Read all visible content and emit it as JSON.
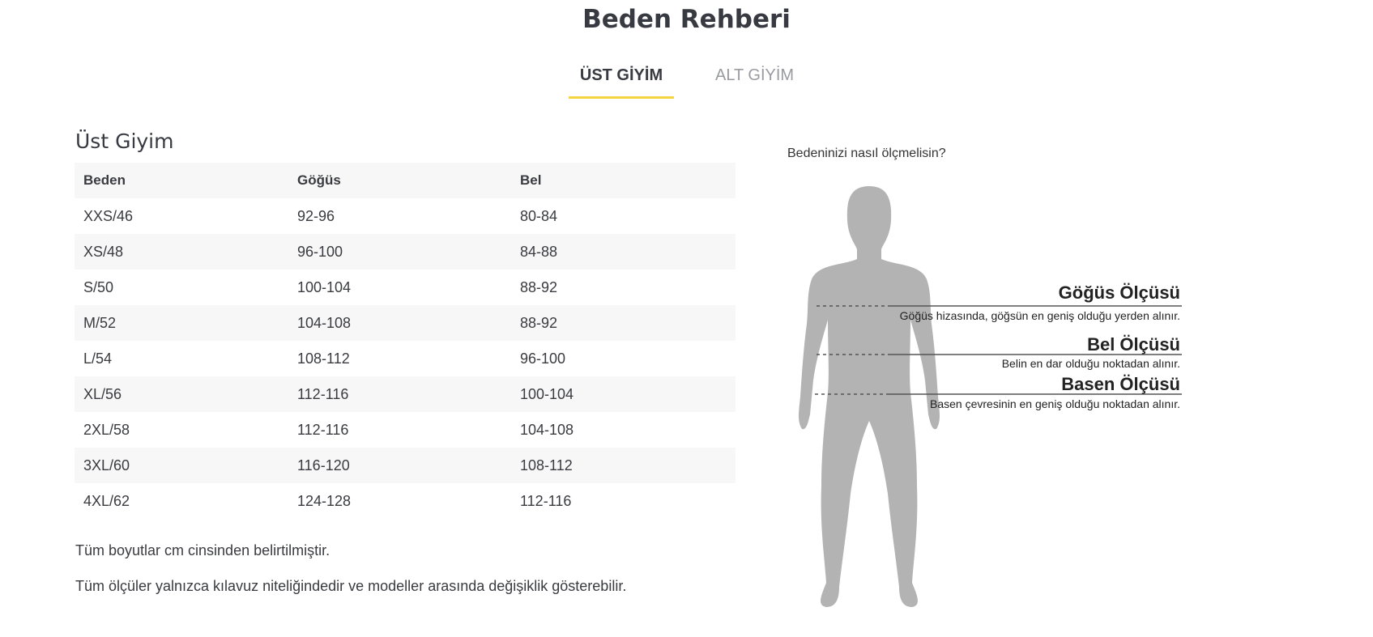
{
  "header": {
    "title": "Beden Rehberi"
  },
  "tabs": [
    {
      "label": "ÜST GİYİM",
      "active": true
    },
    {
      "label": "ALT GİYİM",
      "active": false
    }
  ],
  "section": {
    "title": "Üst Giyim"
  },
  "table": {
    "headers": [
      "Beden",
      "Göğüs",
      "Bel"
    ],
    "rows": [
      [
        "XXS/46",
        "92-96",
        "80-84"
      ],
      [
        "XS/48",
        "96-100",
        "84-88"
      ],
      [
        "S/50",
        "100-104",
        "88-92"
      ],
      [
        "M/52",
        "104-108",
        "88-92"
      ],
      [
        "L/54",
        "108-112",
        "96-100"
      ],
      [
        "XL/56",
        "112-116",
        "100-104"
      ],
      [
        "2XL/58",
        "112-116",
        "104-108"
      ],
      [
        "3XL/60",
        "116-120",
        "108-112"
      ],
      [
        "4XL/62",
        "124-128",
        "112-116"
      ]
    ]
  },
  "notes": [
    "Tüm boyutlar cm cinsinden belirtilmiştir.",
    "Tüm ölçüler yalnızca kılavuz niteliğindedir ve modeller arasında değişiklik gösterebilir."
  ],
  "figure": {
    "question": "Bedeninizi nasıl ölçmelisin?",
    "measures": [
      {
        "title": "Göğüs Ölçüsü",
        "desc": "Göğüs hizasında, göğsün en geniş olduğu yerden alınır."
      },
      {
        "title": "Bel Ölçüsü",
        "desc": "Belin en dar olduğu noktadan alınır."
      },
      {
        "title": "Basen Ölçüsü",
        "desc": "Basen çevresinin en geniş olduğu noktadan alınır."
      }
    ]
  },
  "colors": {
    "accent": "#f5d53f",
    "silhouette": "#b3b3b3",
    "stripe": "#f7f7f7"
  }
}
